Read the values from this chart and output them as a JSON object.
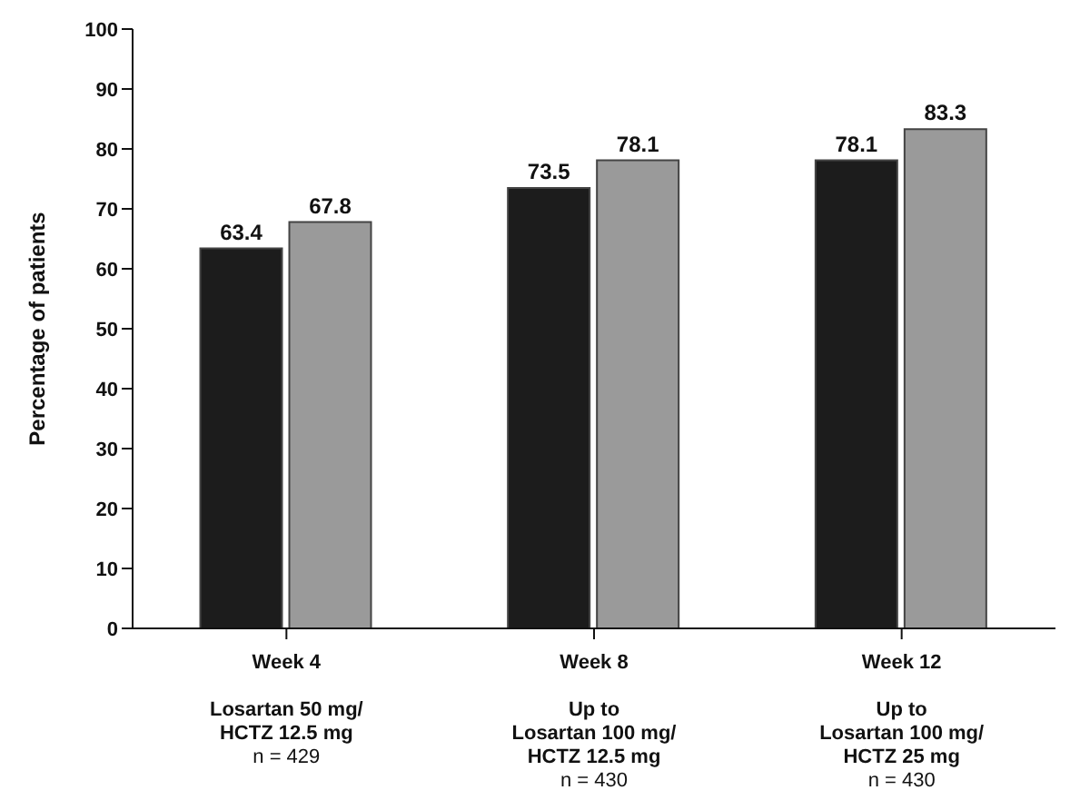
{
  "chart_data": {
    "type": "bar",
    "ylabel": "Percentage of patients",
    "categories": [
      "Week 4\n\nLosartan 50 mg/\nHCTZ 12.5 mg\nn = 429",
      "Week 8\n\nUp to\nLosartan 100 mg/\nHCTZ 12.5 mg\nn = 430",
      "Week 12\n\nUp to\nLosartan 100 mg/\nHCTZ 25 mg\nn = 430"
    ],
    "series": [
      {
        "color": "#1c1c1c",
        "values": [
          63.4,
          73.5,
          78.1
        ]
      },
      {
        "color": "#9a9a9a",
        "values": [
          67.8,
          78.1,
          83.3
        ]
      }
    ],
    "ylim": [
      0,
      100
    ],
    "yticks": [
      0,
      10,
      20,
      30,
      40,
      50,
      60,
      70,
      80,
      90,
      100
    ],
    "data_labels": true,
    "grid": false,
    "legend": false
  }
}
